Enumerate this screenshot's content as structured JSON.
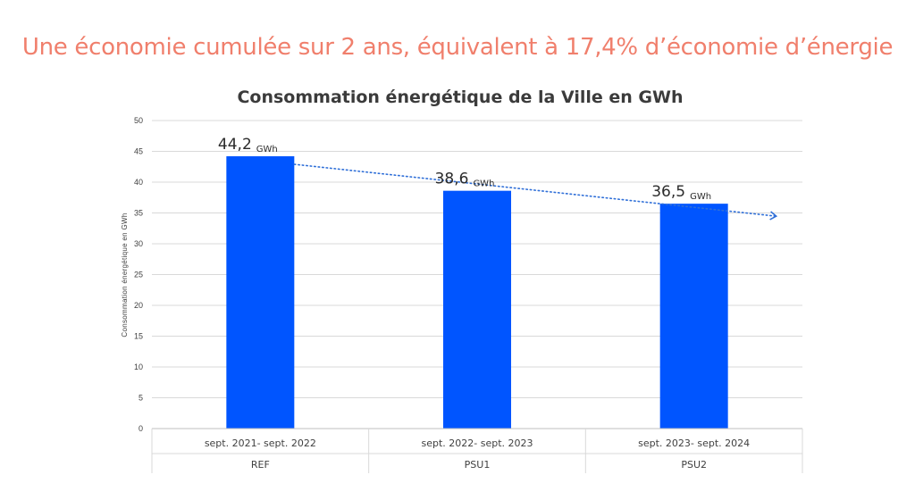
{
  "headline": "Une économie cumulée sur 2 ans, équivalent à 17,4%  d’économie d’énergie",
  "chart_data": {
    "type": "bar",
    "title": "Consommation énergétique de la Ville en GWh",
    "ylabel": "Consommation énergétique en GWh",
    "xlabel": "",
    "ylim": [
      0,
      50
    ],
    "yticks": [
      0,
      5,
      10,
      15,
      20,
      25,
      30,
      35,
      40,
      45,
      50
    ],
    "grid": true,
    "categories": [
      "sept. 2021- sept. 2022",
      "sept. 2022- sept. 2023",
      "sept. 2023- sept. 2024"
    ],
    "groups": [
      "REF",
      "PSU1",
      "PSU2"
    ],
    "values": [
      44.2,
      38.6,
      36.5
    ],
    "data_labels": [
      {
        "value": "44,2",
        "unit": "GWh"
      },
      {
        "value": "38,6",
        "unit": "GWh"
      },
      {
        "value": "36,5",
        "unit": "GWh"
      }
    ],
    "trendline": {
      "style": "dotted",
      "arrow": true
    },
    "colors": {
      "bar": "#0055ff",
      "trend": "#2f6fd8",
      "grid": "#d9d9d9",
      "headline": "#f07f6c"
    }
  }
}
